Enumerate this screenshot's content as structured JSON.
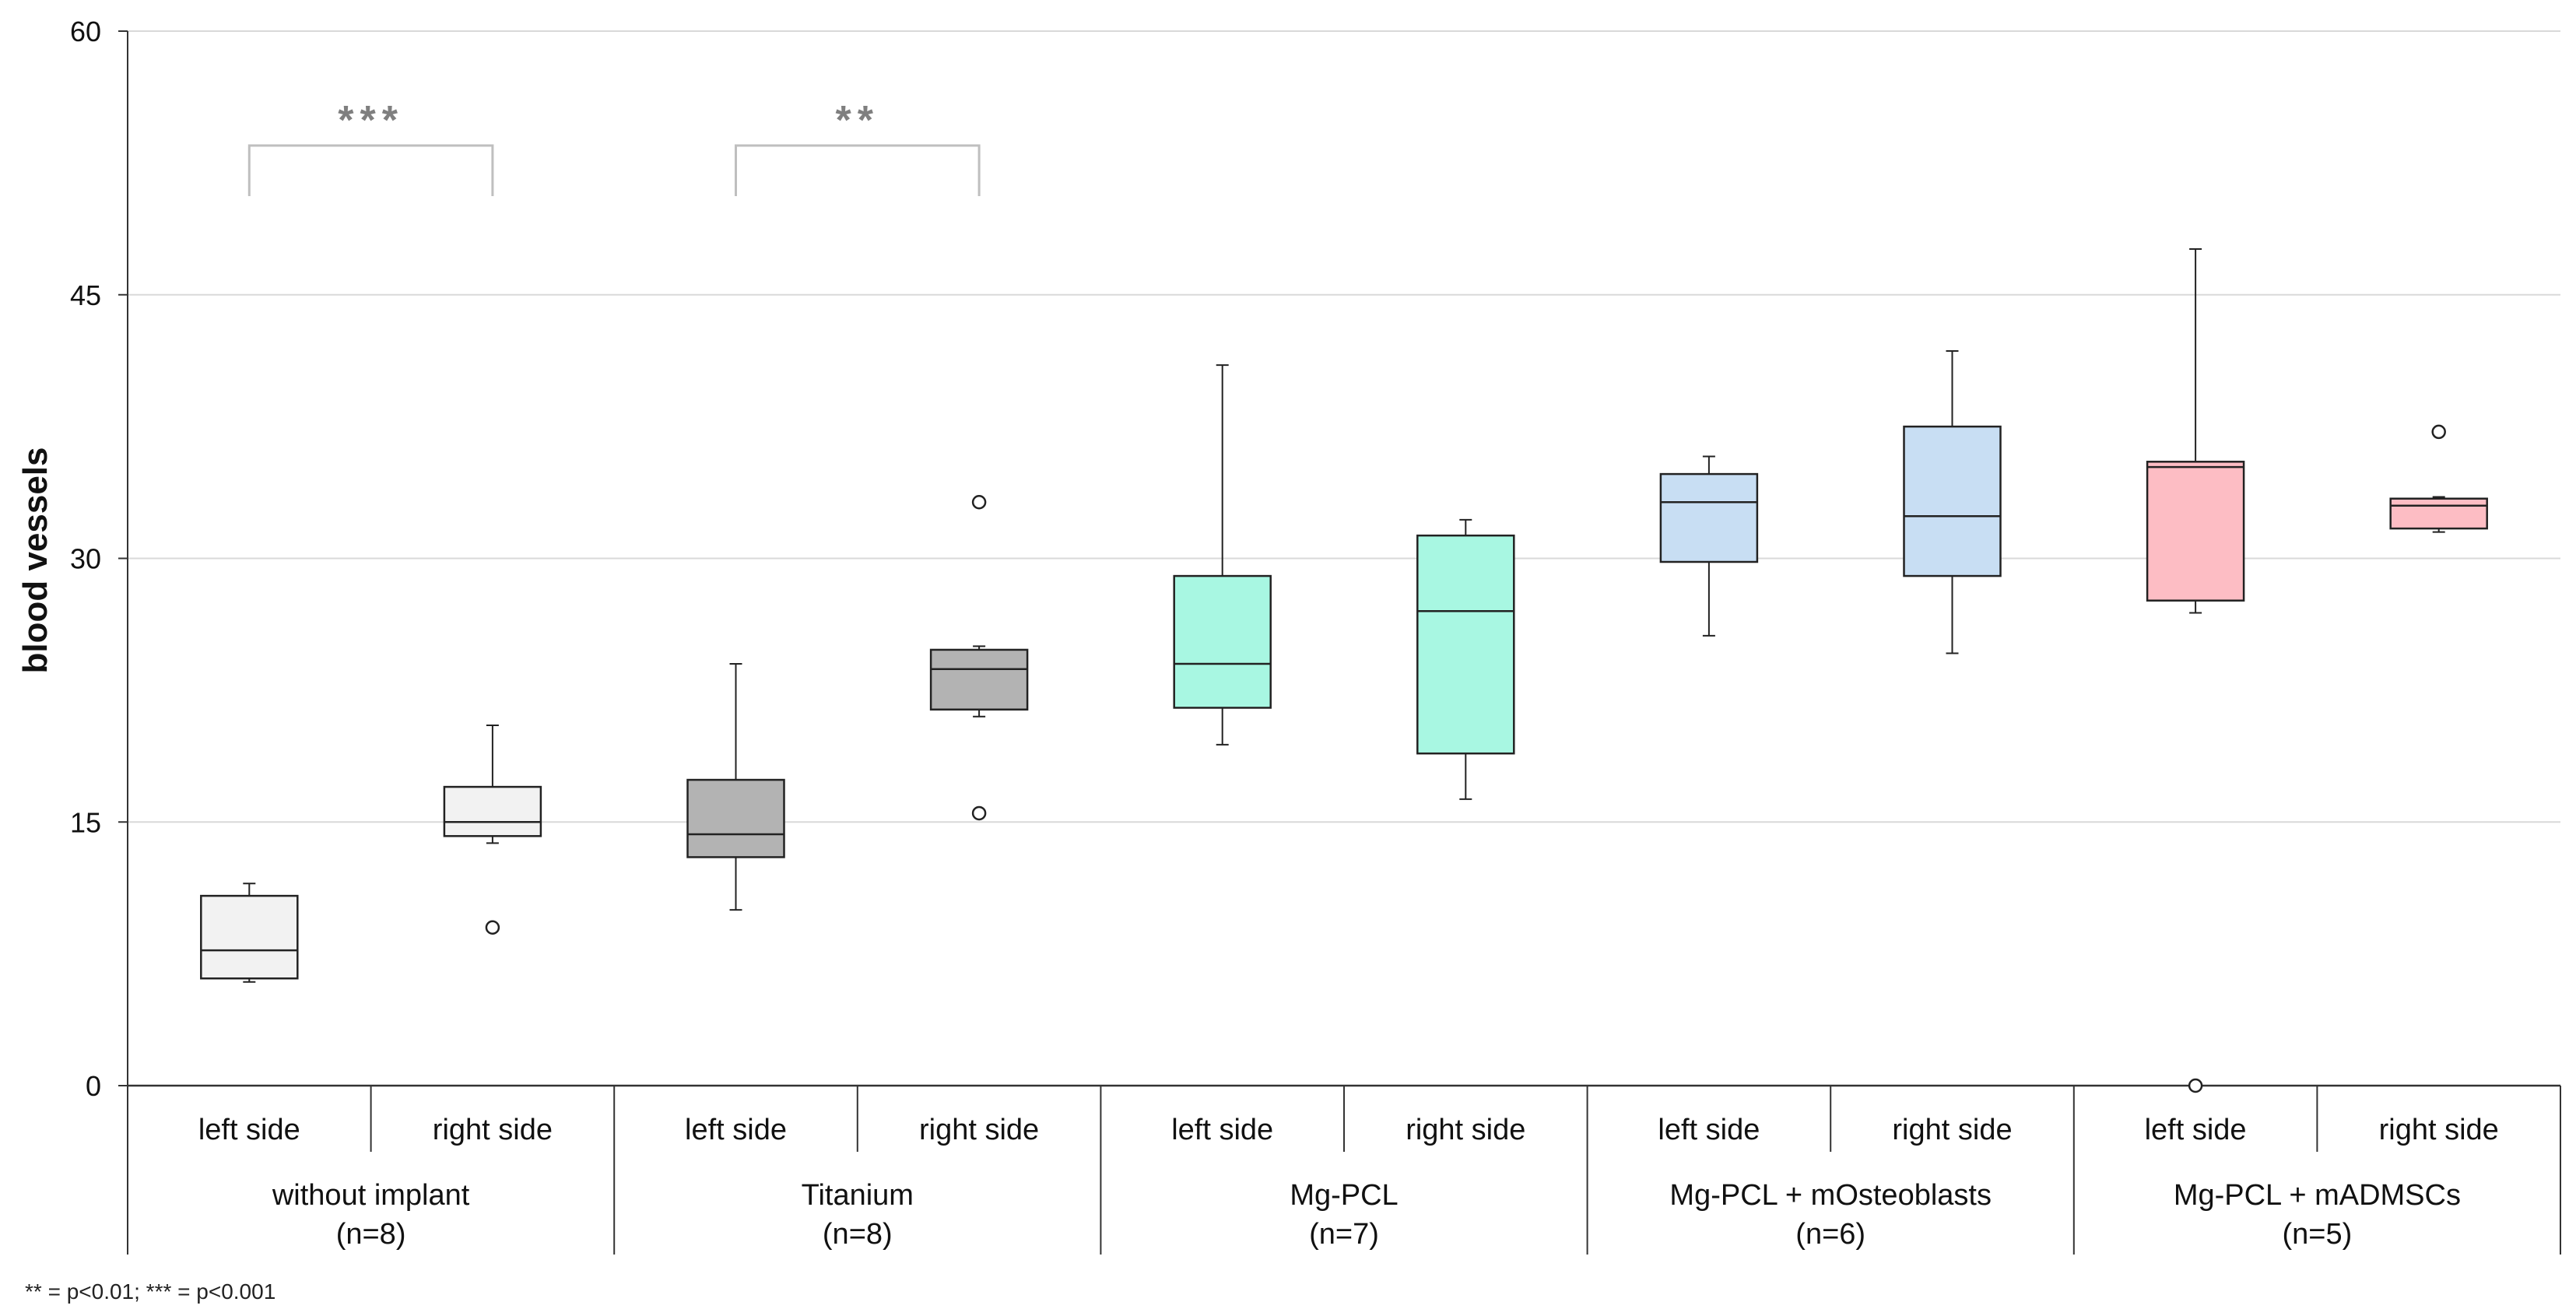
{
  "chart_data": {
    "type": "box",
    "title": "",
    "ylabel": "blood vessels",
    "xlabel": "",
    "ylim": [
      0,
      60
    ],
    "yticks": [
      0,
      15,
      30,
      45,
      60
    ],
    "gridlines": true,
    "sublabels": [
      "left side",
      "right side"
    ],
    "groups": [
      {
        "name": "without implant",
        "n": "(n=8)",
        "color": "#f2f2f2"
      },
      {
        "name": "Titanium",
        "n": "(n=8)",
        "color": "#b3b3b3"
      },
      {
        "name": "Mg-PCL",
        "n": "(n=7)",
        "color": "#a8f7e2"
      },
      {
        "name": "Mg-PCL + mOsteoblasts",
        "n": "(n=6)",
        "color": "#c8def3"
      },
      {
        "name": "Mg-PCL + mADMSCs",
        "n": "(n=5)",
        "color": "#fdbdc4"
      }
    ],
    "boxes": [
      {
        "group": 0,
        "side": "left side",
        "whisker_low": 5.9,
        "q1": 6.1,
        "median": 7.7,
        "q3": 10.8,
        "whisker_high": 11.5,
        "outliers": []
      },
      {
        "group": 0,
        "side": "right side",
        "whisker_low": 13.8,
        "q1": 14.2,
        "median": 15.0,
        "q3": 17.0,
        "whisker_high": 20.5,
        "outliers": [
          9.0
        ]
      },
      {
        "group": 1,
        "side": "left side",
        "whisker_low": 10.0,
        "q1": 13.0,
        "median": 14.3,
        "q3": 17.4,
        "whisker_high": 24.0,
        "outliers": []
      },
      {
        "group": 1,
        "side": "right side",
        "whisker_low": 21.0,
        "q1": 21.4,
        "median": 23.7,
        "q3": 24.8,
        "whisker_high": 25.0,
        "outliers": [
          33.2,
          15.5
        ]
      },
      {
        "group": 2,
        "side": "left side",
        "whisker_low": 19.4,
        "q1": 21.5,
        "median": 24.0,
        "q3": 29.0,
        "whisker_high": 41.0,
        "outliers": []
      },
      {
        "group": 2,
        "side": "right side",
        "whisker_low": 16.3,
        "q1": 18.9,
        "median": 27.0,
        "q3": 31.3,
        "whisker_high": 32.2,
        "outliers": []
      },
      {
        "group": 3,
        "side": "left side",
        "whisker_low": 25.6,
        "q1": 29.8,
        "median": 33.2,
        "q3": 34.8,
        "whisker_high": 35.8,
        "outliers": []
      },
      {
        "group": 3,
        "side": "right side",
        "whisker_low": 24.6,
        "q1": 29.0,
        "median": 32.4,
        "q3": 37.5,
        "whisker_high": 41.8,
        "outliers": []
      },
      {
        "group": 4,
        "side": "left side",
        "whisker_low": 26.9,
        "q1": 27.6,
        "median": 35.2,
        "q3": 35.5,
        "whisker_high": 47.6,
        "outliers": [
          0.0
        ]
      },
      {
        "group": 4,
        "side": "right side",
        "whisker_low": 31.5,
        "q1": 31.7,
        "median": 33.0,
        "q3": 33.4,
        "whisker_high": 33.5,
        "outliers": [
          37.2
        ]
      }
    ],
    "significance": [
      {
        "from_box": 0,
        "to_box": 1,
        "label": "***"
      },
      {
        "from_box": 2,
        "to_box": 3,
        "label": "**"
      }
    ],
    "footnote": "** = p<0.01; *** = p<0.001"
  }
}
